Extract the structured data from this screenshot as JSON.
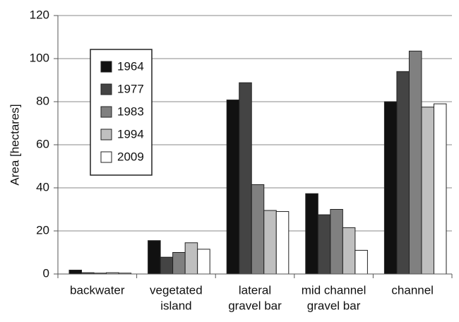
{
  "chart_data": {
    "type": "bar",
    "y_label": "Area [hectares]",
    "categories": [
      [
        "backwater"
      ],
      [
        "vegetated",
        "island"
      ],
      [
        "lateral",
        "gravel bar"
      ],
      [
        "mid channel",
        "gravel bar"
      ],
      [
        "channel"
      ]
    ],
    "series": [
      {
        "name": "1964",
        "color": "#111111",
        "values": [
          1.8,
          15.5,
          80.8,
          37.3,
          80
        ]
      },
      {
        "name": "1977",
        "color": "#444444",
        "values": [
          0.6,
          7.8,
          88.8,
          27.5,
          94
        ]
      },
      {
        "name": "1983",
        "color": "#808080",
        "values": [
          0.4,
          10,
          41.5,
          30,
          103.5
        ]
      },
      {
        "name": "1994",
        "color": "#bfbfbf",
        "values": [
          0.6,
          14.5,
          29.5,
          21.5,
          77.5
        ]
      },
      {
        "name": "2009",
        "color": "#ffffff",
        "values": [
          0.4,
          11.5,
          29,
          11,
          79
        ]
      }
    ],
    "ylim": [
      0,
      120
    ],
    "yticks": [
      0,
      20,
      40,
      60,
      80,
      100,
      120
    ],
    "grid": true
  }
}
